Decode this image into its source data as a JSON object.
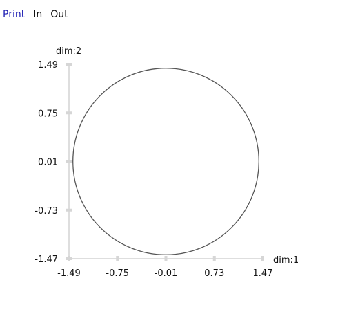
{
  "toolbar": {
    "print_label": "Print",
    "zoom_in_label": "In",
    "zoom_out_label": "Out",
    "print_color": "#1f1fb3"
  },
  "chart_data": {
    "type": "scatter",
    "title": "",
    "xlabel": "dim:1",
    "ylabel": "dim:2",
    "xlim": [
      -1.49,
      1.47
    ],
    "ylim": [
      -1.47,
      1.49
    ],
    "x_ticks": [
      -1.49,
      -0.75,
      -0.01,
      0.73,
      1.47
    ],
    "x_tick_labels": [
      "-1.49",
      "-0.75",
      "-0.01",
      "0.73",
      "1.47"
    ],
    "y_ticks": [
      -1.47,
      -0.73,
      0.01,
      0.75,
      1.49
    ],
    "y_tick_labels": [
      "-1.47",
      "-0.73",
      "0.01",
      "0.75",
      "1.49"
    ],
    "shape": {
      "kind": "circle",
      "center": [
        -0.01,
        0.01
      ],
      "radius": 1.42
    },
    "grid": false,
    "colors": {
      "axis": "#bdbdbd",
      "tick": "#d6d6d6",
      "shape": "#555555"
    }
  }
}
